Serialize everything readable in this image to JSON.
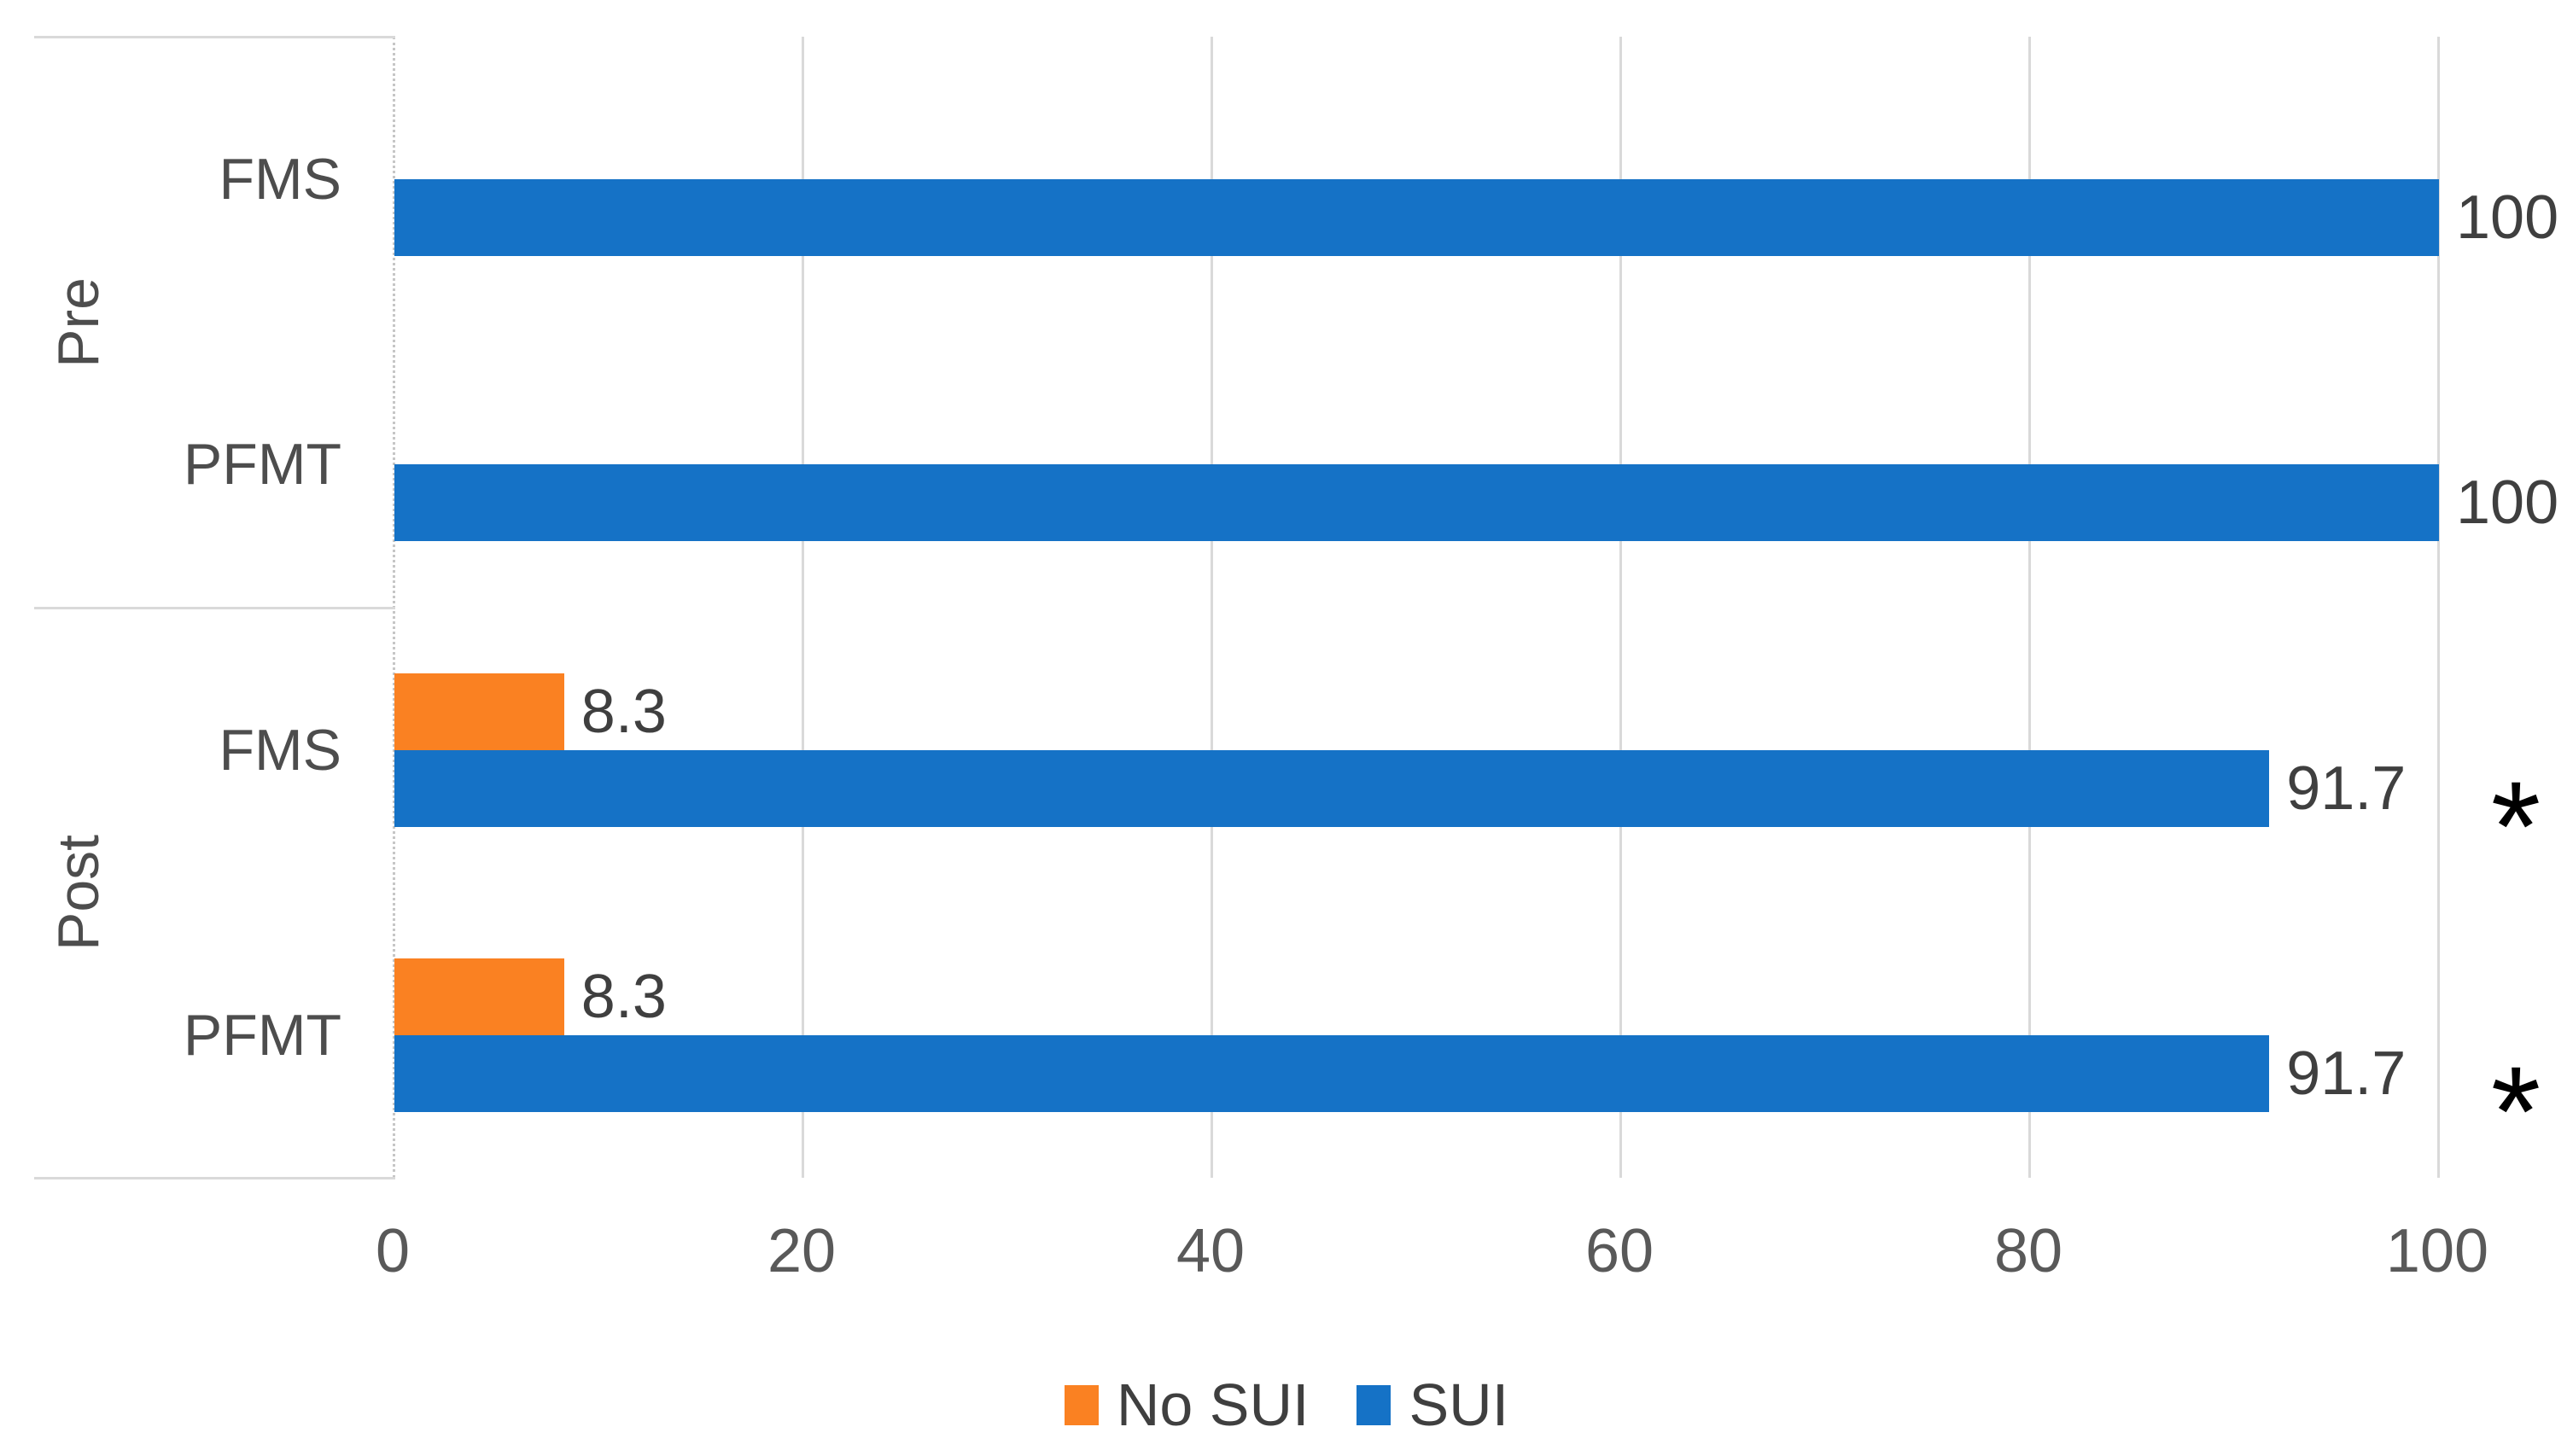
{
  "chart_data": {
    "type": "bar",
    "orientation": "horizontal",
    "title": "",
    "groups": [
      "Pre",
      "Post"
    ],
    "series": [
      {
        "name": "No SUI",
        "color": "#fa8122"
      },
      {
        "name": "SUI",
        "color": "#1572c6"
      }
    ],
    "rows": [
      {
        "group": "Pre",
        "category": "FMS",
        "values": {
          "No SUI": null,
          "SUI": 100
        },
        "data_labels": {
          "No SUI": null,
          "SUI": "100"
        },
        "annotation": null
      },
      {
        "group": "Pre",
        "category": "PFMT",
        "values": {
          "No SUI": null,
          "SUI": 100
        },
        "data_labels": {
          "No SUI": null,
          "SUI": "100"
        },
        "annotation": null
      },
      {
        "group": "Post",
        "category": "FMS",
        "values": {
          "No SUI": 8.3,
          "SUI": 91.7
        },
        "data_labels": {
          "No SUI": "8.3",
          "SUI": "91.7"
        },
        "annotation": "*"
      },
      {
        "group": "Post",
        "category": "PFMT",
        "values": {
          "No SUI": 8.3,
          "SUI": 91.7
        },
        "data_labels": {
          "No SUI": "8.3",
          "SUI": "91.7"
        },
        "annotation": "*"
      }
    ],
    "x_axis": {
      "min": 0,
      "max": 100,
      "tick_labels": [
        "0",
        "20",
        "40",
        "60",
        "80",
        "100"
      ],
      "grid": true
    },
    "legend": {
      "position": "bottom",
      "entries": [
        "No SUI",
        "SUI"
      ]
    }
  },
  "colors": {
    "background": "#ffffff",
    "grid_line": "#d9d9d9",
    "zero_axis_line": "#c6c6c6",
    "tick_label": "#595959",
    "data_label": "#3f3f3f",
    "category_label": "#4d4d4d",
    "annotation": "#000000",
    "no_sui_bar": "#fa8122",
    "sui_bar": "#1572c6"
  }
}
